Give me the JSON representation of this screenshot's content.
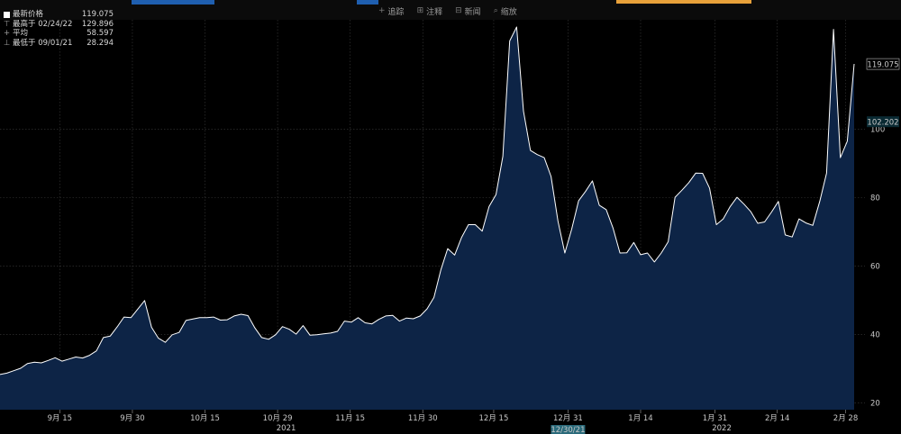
{
  "toolbar": {
    "buttons": [
      {
        "icon": "+",
        "label": "追踪"
      },
      {
        "icon": "⊞",
        "label": "注释"
      },
      {
        "icon": "⊟",
        "label": "新闻"
      },
      {
        "icon": "⌕",
        "label": "缩放"
      }
    ]
  },
  "legend": {
    "latest_label": "最新价格",
    "latest_value": "119.075",
    "high_label": "最高于 02/24/22",
    "high_value": "129.896",
    "avg_label": "平均",
    "avg_value": "58.597",
    "low_label": "最低于 09/01/21",
    "low_value": "28.294"
  },
  "colors": {
    "area_fill": "#0d2446",
    "line": "#ffffff",
    "grid": "#3a3a3a",
    "label_last": "#ffffff",
    "label_current": "#a8d8e0",
    "crosshair_label": "#2a6a7a",
    "top_accent": "#1f5fb0",
    "top_orange": "#e8a13a"
  },
  "chart_data": {
    "type": "area",
    "x_tick_labels": [
      "9月 15",
      "9月 30",
      "10月 15",
      "10月 29",
      "11月 15",
      "11月 30",
      "12月 15",
      "12月 31",
      "1月 14",
      "1月 31",
      "2月 14",
      "2月 28"
    ],
    "year_labels": [
      "2021",
      "2022"
    ],
    "y_ticks": [
      20,
      40,
      60,
      80,
      100
    ],
    "ylim": [
      18,
      132
    ],
    "value_labels": {
      "last": "119.075",
      "current": "102.202"
    },
    "crosshair_date": "12/30/21",
    "series": [
      {
        "values": [
          28.3,
          28.7,
          29.4,
          30.1,
          31.5,
          31.9,
          31.7,
          32.4,
          33.2,
          32.2,
          32.8,
          33.4,
          33.1,
          33.9,
          35.2,
          39.1,
          39.5,
          42.2,
          45.1,
          44.9,
          47.4,
          49.9,
          42.1,
          38.9,
          37.7,
          39.9,
          40.6,
          44.1,
          44.5,
          44.9,
          44.9,
          45.1,
          44.2,
          44.3,
          45.4,
          45.9,
          45.5,
          41.9,
          39.1,
          38.6,
          39.9,
          42.3,
          41.5,
          40.1,
          42.6,
          39.8,
          39.9,
          40.2,
          40.4,
          40.9,
          43.9,
          43.6,
          44.9,
          43.4,
          43.1,
          44.4,
          45.4,
          45.6,
          43.9,
          44.8,
          44.6,
          45.4,
          47.5,
          50.8,
          58.9,
          65.1,
          63.2,
          68.3,
          72.1,
          72.1,
          70.2,
          77.4,
          80.9,
          92.1,
          125.8,
          129.9,
          105.3,
          93.8,
          92.6,
          91.7,
          86.2,
          73.1,
          63.8,
          70.8,
          79.1,
          81.8,
          84.9,
          77.8,
          76.5,
          71.1,
          63.8,
          63.9,
          66.9,
          63.3,
          63.8,
          61.2,
          63.8,
          67.1,
          80.1,
          82.2,
          84.4,
          87.2,
          87.1,
          82.8,
          72.1,
          73.8,
          77.4,
          80.1,
          78.1,
          75.9,
          72.5,
          72.9,
          75.8,
          78.9,
          69.1,
          68.5,
          73.8,
          72.6,
          71.9,
          78.9,
          87.2,
          129.2,
          91.7,
          96.5,
          119.1
        ]
      }
    ]
  }
}
